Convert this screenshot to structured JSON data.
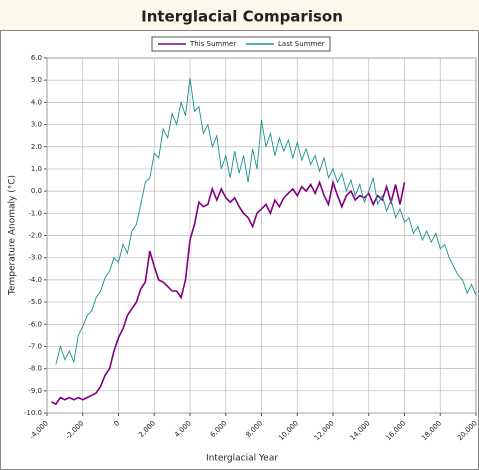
{
  "chart_data": {
    "type": "line",
    "title": "Interglacial Comparison",
    "xlabel": "Interglacial Year",
    "ylabel": "Temperature Anomaly (°C)",
    "xlim": [
      -4000,
      20000
    ],
    "ylim": [
      -10,
      6
    ],
    "grid": true,
    "legend": "top",
    "xticks": [
      {
        "value": -4000,
        "label": "-4,000"
      },
      {
        "value": -2000,
        "label": "-2,000"
      },
      0,
      {
        "value": 2000,
        "label": "2,000"
      },
      {
        "value": 4000,
        "label": "4,000"
      },
      {
        "value": 6000,
        "label": "6,000"
      },
      {
        "value": 8000,
        "label": "8,000"
      },
      {
        "value": 10000,
        "label": "10,000"
      },
      {
        "value": 12000,
        "label": "12,000"
      },
      {
        "value": 14000,
        "label": "14,000"
      },
      {
        "value": 16000,
        "label": "16,000"
      },
      {
        "value": 18000,
        "label": "18,000"
      },
      {
        "value": 20000,
        "label": "20,000"
      }
    ],
    "yticks": [
      {
        "value": 6,
        "label": "6.0"
      },
      {
        "value": 5,
        "label": "5.0"
      },
      {
        "value": 4,
        "label": "4.0"
      },
      {
        "value": 3,
        "label": "3.0"
      },
      {
        "value": 2,
        "label": "2.0"
      },
      {
        "value": 1,
        "label": "1.0"
      },
      {
        "value": 0,
        "label": "0.0"
      },
      {
        "value": -1,
        "label": "-1.0"
      },
      {
        "value": -2,
        "label": "-2.0"
      },
      {
        "value": -3,
        "label": "-3.0"
      },
      {
        "value": -4,
        "label": "-4.0"
      },
      {
        "value": -5,
        "label": "-5.0"
      },
      {
        "value": -6,
        "label": "-6.0"
      },
      {
        "value": -7,
        "label": "-7.0"
      },
      {
        "value": -8,
        "label": "-8.0"
      },
      {
        "value": -9,
        "label": "-9.0"
      },
      {
        "value": -10,
        "label": "-10.0"
      }
    ],
    "series": [
      {
        "name": "This Summer",
        "color": "#800080",
        "x": [
          -3750,
          -3500,
          -3250,
          -3000,
          -2750,
          -2500,
          -2250,
          -2000,
          -1750,
          -1500,
          -1250,
          -1000,
          -750,
          -500,
          -250,
          0,
          250,
          500,
          750,
          1000,
          1250,
          1500,
          1750,
          2000,
          2250,
          2500,
          2750,
          3000,
          3250,
          3500,
          3750,
          4000,
          4250,
          4500,
          4750,
          5000,
          5250,
          5500,
          5750,
          6000,
          6250,
          6500,
          6750,
          7000,
          7250,
          7500,
          7750,
          8000,
          8250,
          8500,
          8750,
          9000,
          9250,
          9500,
          9750,
          10000,
          10250,
          10500,
          10750,
          11000,
          11250,
          11500,
          11750,
          12000,
          12250,
          12500,
          12750,
          13000,
          13250,
          13500,
          13750,
          14000,
          14250,
          14500,
          14750,
          15000,
          15250,
          15500,
          15750,
          16000
        ],
        "values": [
          -9.5,
          -9.6,
          -9.3,
          -9.4,
          -9.3,
          -9.4,
          -9.3,
          -9.4,
          -9.3,
          -9.2,
          -9.1,
          -8.8,
          -8.3,
          -8.0,
          -7.2,
          -6.6,
          -6.2,
          -5.6,
          -5.3,
          -5.0,
          -4.4,
          -4.1,
          -2.7,
          -3.4,
          -4.0,
          -4.1,
          -4.3,
          -4.5,
          -4.5,
          -4.8,
          -4.0,
          -2.2,
          -1.5,
          -0.5,
          -0.7,
          -0.6,
          0.1,
          -0.4,
          0.1,
          -0.3,
          -0.5,
          -0.3,
          -0.7,
          -1.0,
          -1.2,
          -1.6,
          -1.0,
          -0.8,
          -0.6,
          -1.0,
          -0.4,
          -0.7,
          -0.3,
          -0.1,
          0.1,
          -0.2,
          0.2,
          0.0,
          0.3,
          -0.1,
          0.4,
          -0.2,
          -0.6,
          0.4,
          -0.2,
          -0.7,
          -0.2,
          0.0,
          -0.4,
          -0.2,
          -0.3,
          -0.1,
          -0.6,
          -0.2,
          -0.4,
          0.2,
          -0.5,
          0.3,
          -0.6,
          0.4
        ]
      },
      {
        "name": "Last Summer",
        "color": "#1a9090",
        "x": [
          -3500,
          -3250,
          -3000,
          -2750,
          -2500,
          -2250,
          -2000,
          -1750,
          -1500,
          -1250,
          -1000,
          -750,
          -500,
          -250,
          0,
          250,
          500,
          750,
          1000,
          1250,
          1500,
          1750,
          2000,
          2250,
          2500,
          2750,
          3000,
          3250,
          3500,
          3750,
          4000,
          4250,
          4500,
          4750,
          5000,
          5250,
          5500,
          5750,
          6000,
          6250,
          6500,
          6750,
          7000,
          7250,
          7500,
          7750,
          8000,
          8250,
          8500,
          8750,
          9000,
          9250,
          9500,
          9750,
          10000,
          10250,
          10500,
          10750,
          11000,
          11250,
          11500,
          11750,
          12000,
          12250,
          12500,
          12750,
          13000,
          13250,
          13500,
          13750,
          14000,
          14250,
          14500,
          14750,
          15000,
          15250,
          15500,
          15750,
          16000,
          16250,
          16500,
          16750,
          17000,
          17250,
          17500,
          17750,
          18000,
          18250,
          18500,
          18750,
          19000,
          19250,
          19500,
          19750,
          20000
        ],
        "values": [
          -7.8,
          -7.0,
          -7.6,
          -7.2,
          -7.7,
          -6.5,
          -6.1,
          -5.6,
          -5.4,
          -4.8,
          -4.5,
          -3.9,
          -3.6,
          -3.0,
          -3.2,
          -2.4,
          -2.8,
          -1.8,
          -1.5,
          -0.6,
          0.4,
          0.6,
          1.7,
          1.5,
          2.8,
          2.4,
          3.5,
          3.0,
          4.0,
          3.4,
          5.1,
          3.6,
          3.8,
          2.6,
          3.0,
          2.0,
          2.5,
          1.0,
          1.6,
          0.6,
          1.8,
          0.8,
          1.6,
          0.4,
          1.9,
          1.0,
          3.2,
          2.0,
          2.6,
          1.6,
          2.4,
          1.8,
          2.3,
          1.5,
          2.2,
          1.4,
          1.9,
          1.2,
          1.6,
          0.9,
          1.5,
          0.6,
          1.0,
          0.4,
          0.8,
          0.0,
          0.5,
          -0.2,
          0.3,
          -0.5,
          0.0,
          0.6,
          -0.6,
          -0.2,
          -0.9,
          -0.4,
          -1.2,
          -0.8,
          -1.4,
          -1.2,
          -1.9,
          -1.6,
          -2.2,
          -1.8,
          -2.3,
          -1.9,
          -2.6,
          -2.4,
          -3.0,
          -3.4,
          -3.8,
          -4.0,
          -4.6,
          -4.2,
          -4.7
        ]
      }
    ]
  }
}
